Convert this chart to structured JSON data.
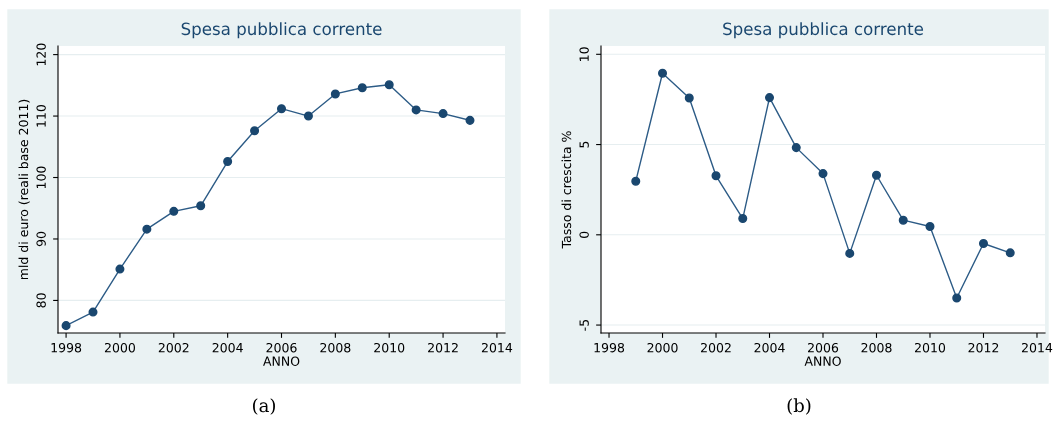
{
  "chart_data": [
    {
      "type": "line",
      "title": "Spesa pubblica corrente",
      "xlabel": "ANNO",
      "ylabel": "mld di euro (reali base 2011)",
      "x": [
        1998,
        1999,
        2000,
        2001,
        2002,
        2003,
        2004,
        2005,
        2006,
        2007,
        2008,
        2009,
        2010,
        2011,
        2012,
        2013
      ],
      "series": [
        {
          "color": "#2c5b86",
          "values": [
            75.9,
            78.1,
            85.1,
            91.6,
            94.5,
            95.4,
            102.6,
            107.6,
            111.2,
            110.0,
            113.6,
            114.6,
            115.1,
            111.0,
            110.4,
            109.3
          ]
        }
      ],
      "xlim": [
        1997.7,
        2014.3
      ],
      "xticks": [
        1998,
        2000,
        2002,
        2004,
        2006,
        2008,
        2010,
        2012,
        2014
      ],
      "ylim": [
        74.7,
        121.4
      ],
      "yticks": [
        80,
        90,
        100,
        110,
        120
      ],
      "grid": "y",
      "marker": "circle",
      "line_style": "solid",
      "annotations": [
        "(a)"
      ]
    },
    {
      "type": "line",
      "title": "Spesa pubblica corrente",
      "xlabel": "ANNO",
      "ylabel": "Tasso di crescita %",
      "x": [
        1999,
        2000,
        2001,
        2002,
        2003,
        2004,
        2005,
        2006,
        2007,
        2008,
        2009,
        2010,
        2011,
        2012,
        2013
      ],
      "series": [
        {
          "color": "#2c5b86",
          "values": [
            2.97,
            8.95,
            7.58,
            3.27,
            0.9,
            7.6,
            4.83,
            3.39,
            -1.03,
            3.3,
            0.81,
            0.46,
            -3.5,
            -0.48,
            -1.0
          ]
        }
      ],
      "xlim": [
        1997.7,
        2014.3
      ],
      "xticks": [
        1998,
        2000,
        2002,
        2004,
        2006,
        2008,
        2010,
        2012,
        2014
      ],
      "ylim": [
        -5.44,
        10.46
      ],
      "yticks": [
        {
          "value": -5,
          "label": "-5"
        },
        0,
        5,
        10
      ],
      "grid": "y",
      "marker": "circle",
      "line_style": "solid",
      "annotations": [
        "(b)"
      ]
    }
  ]
}
